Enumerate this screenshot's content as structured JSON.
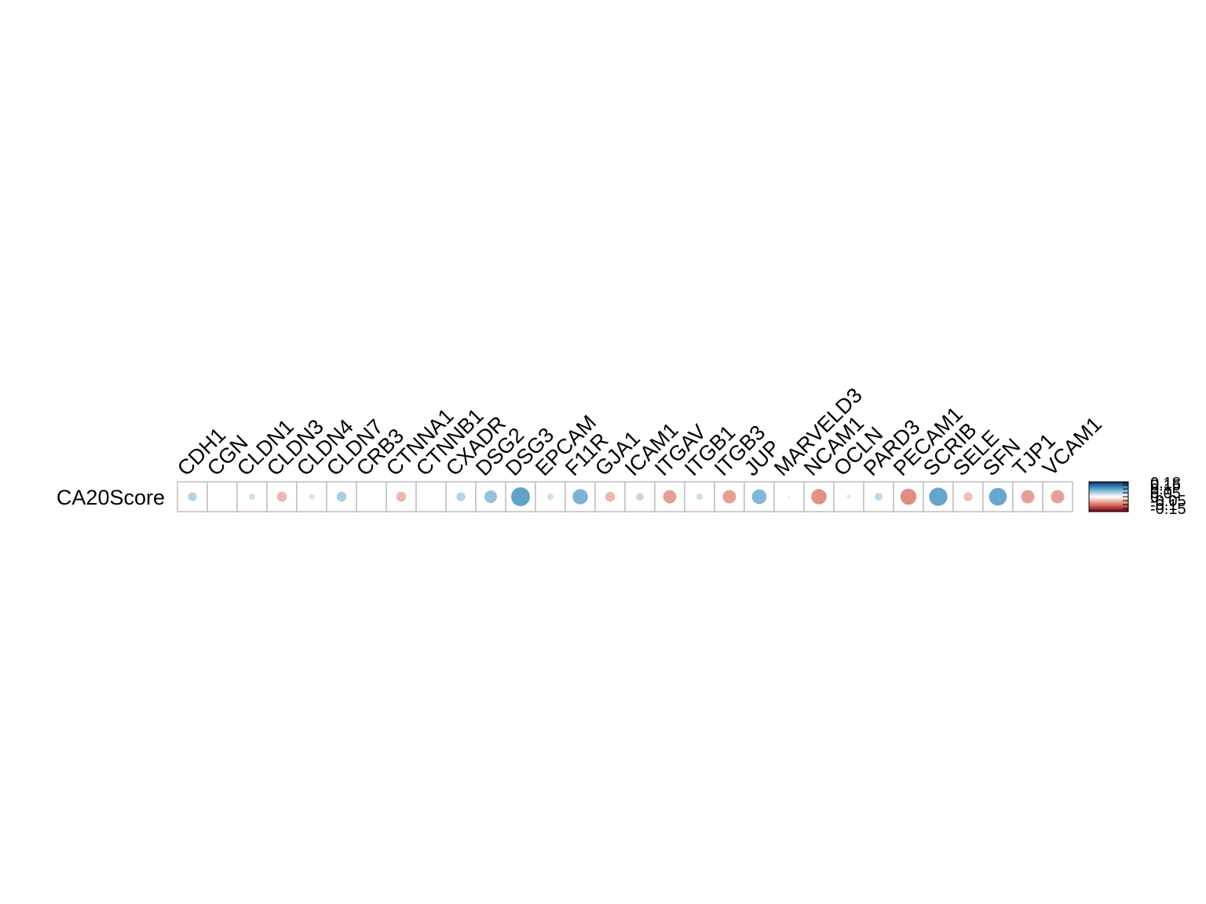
{
  "chart_data": {
    "type": "heatmap",
    "title": "",
    "xlabel": "",
    "ylabel": "",
    "row_label": "CA20Score",
    "categories": [
      "CDH1",
      "CGN",
      "CLDN1",
      "CLDN3",
      "CLDN4",
      "CLDN7",
      "CRB3",
      "CTNNA1",
      "CTNNB1",
      "CXADR",
      "DSG2",
      "DSG3",
      "EPCAM",
      "F11R",
      "GJA1",
      "ICAM1",
      "ITGAV",
      "ITGB1",
      "ITGB3",
      "JUP",
      "MARVELD3",
      "NCAM1",
      "OCLN",
      "PARD3",
      "PECAM1",
      "SCRIB",
      "SELE",
      "SFN",
      "TJP1",
      "VCAM1"
    ],
    "values": [
      0.04,
      0.0,
      0.02,
      -0.05,
      0.015,
      0.05,
      0.0,
      -0.05,
      0.0,
      0.04,
      0.08,
      0.18,
      0.02,
      0.12,
      -0.05,
      0.03,
      -0.09,
      0.02,
      -0.09,
      0.11,
      0.005,
      -0.12,
      0.01,
      0.03,
      -0.13,
      0.17,
      -0.04,
      0.16,
      -0.09,
      -0.09
    ],
    "ylim": [
      -0.18,
      0.18
    ],
    "colorbar_ticks": [
      "0.18",
      "0.15",
      "0.1",
      "0.05",
      "0",
      "-0.05",
      "-0.1",
      "-0.15"
    ],
    "colors": {
      "positive": "#2166ac",
      "negative": "#b2182b",
      "mid": "#ffffff",
      "grid": "#bfbfbf"
    }
  }
}
